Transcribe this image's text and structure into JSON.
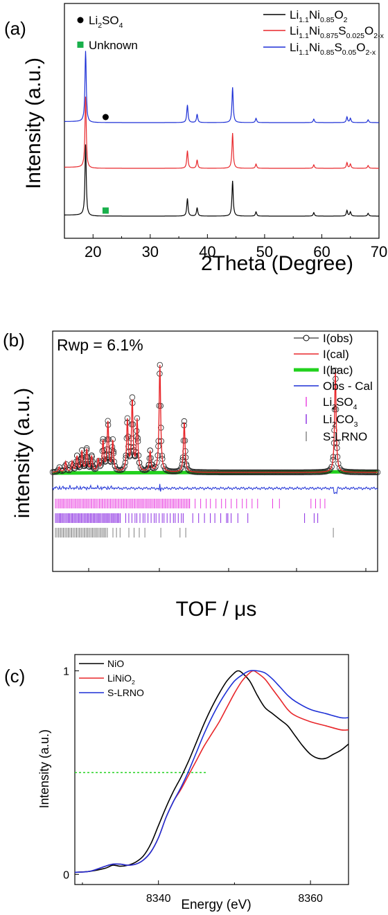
{
  "panels": {
    "a": {
      "letter": "(a)"
    },
    "b": {
      "letter": "(b)",
      "annotation": "Rwp = 6.1%"
    },
    "c": {
      "letter": "(c)"
    }
  },
  "chart_data": [
    {
      "type": "line",
      "panel": "(a)",
      "xlabel": "2Theta (Degree)",
      "ylabel": "Intensity (a.u.)",
      "xlim": [
        15,
        70
      ],
      "xticks": [
        20,
        30,
        40,
        50,
        60,
        70
      ],
      "y_tick_labels_shown": false,
      "grid": false,
      "legend_position": "top-right",
      "colors": {
        "s0": "#000000",
        "s1": "#e8262a",
        "s2": "#1c2fd6",
        "marker_li2so4": "#000000",
        "marker_unknown": "#19b04b"
      },
      "peaks_2theta": [
        18.7,
        36.5,
        38.2,
        44.4,
        48.5,
        58.6,
        64.4,
        65.0,
        68.1
      ],
      "peak_rel_heights": [
        1.0,
        0.25,
        0.12,
        0.5,
        0.06,
        0.05,
        0.08,
        0.06,
        0.04
      ],
      "series": [
        {
          "name_main": "Li",
          "name_parts": [
            [
              "1.1",
              "sub"
            ],
            [
              "Ni",
              "n"
            ],
            [
              "0.85",
              "sub"
            ],
            [
              "O",
              "n"
            ],
            [
              "2",
              "sub"
            ]
          ],
          "color": "#000000",
          "offset": 0
        },
        {
          "name_main": "Li",
          "name_parts": [
            [
              "1.1",
              "sub"
            ],
            [
              "Ni",
              "n"
            ],
            [
              "0.875",
              "sub"
            ],
            [
              "S",
              "n"
            ],
            [
              "0.025",
              "sub"
            ],
            [
              "O",
              "n"
            ],
            [
              "2-x",
              "sub"
            ]
          ],
          "color": "#e8262a",
          "offset": 1
        },
        {
          "name_main": "Li",
          "name_parts": [
            [
              "1.1",
              "sub"
            ],
            [
              "Ni",
              "n"
            ],
            [
              "0.85",
              "sub"
            ],
            [
              "S",
              "n"
            ],
            [
              "0.05",
              "sub"
            ],
            [
              "O",
              "n"
            ],
            [
              "2-x",
              "sub"
            ]
          ],
          "color": "#1c2fd6",
          "offset": 2
        }
      ],
      "marker_legend": [
        {
          "label": "Li",
          "sub": "2",
          "rest": "SO",
          "sub2": "4",
          "marker": "circle"
        },
        {
          "label": "Unknown",
          "marker": "square"
        }
      ],
      "markers": [
        {
          "type": "Li2SO4",
          "x": 22.2,
          "on_series": 2
        },
        {
          "type": "Unknown",
          "x": 22.2,
          "on_series": 0
        }
      ]
    },
    {
      "type": "line",
      "panel": "(b)",
      "xlabel": "TOF / μs",
      "ylabel": "intensity (a.u.)",
      "ticks_labeled": false,
      "grid": false,
      "legend_position": "top-right",
      "peaks_rel_x": [
        0.02,
        0.04,
        0.06,
        0.075,
        0.09,
        0.105,
        0.12,
        0.14,
        0.155,
        0.17,
        0.185,
        0.23,
        0.245,
        0.26,
        0.3,
        0.33,
        0.405,
        0.87
      ],
      "peaks_rel_h": [
        0.05,
        0.1,
        0.1,
        0.15,
        0.2,
        0.22,
        0.15,
        0.12,
        0.3,
        0.48,
        0.3,
        0.5,
        0.7,
        0.5,
        0.2,
        1.05,
        0.5,
        1.0
      ],
      "legend": [
        {
          "label": "I(obs)",
          "style": "open-circle-line",
          "color": "#000000"
        },
        {
          "label": "I(cal)",
          "style": "line",
          "color": "#e8262a"
        },
        {
          "label": "I(bac)",
          "style": "thick-line",
          "color": "#22d11e"
        },
        {
          "label": "Obs - Cal",
          "style": "line",
          "color": "#1c2fd6"
        },
        {
          "label": "Li",
          "sub": "2",
          "rest": "SO",
          "sub2": "4",
          "style": "tick",
          "color": "#e83adf"
        },
        {
          "label": "Li",
          "sub": "2",
          "rest": "CO",
          "sub2": "3",
          "style": "tick",
          "color": "#8a2be2"
        },
        {
          "label": "S-LRNO",
          "style": "tick",
          "color": "#808080"
        }
      ]
    },
    {
      "type": "line",
      "panel": "(c)",
      "xlabel": "Energy (eV)",
      "ylabel": "Intensity (a.u.)",
      "xlim": [
        8329,
        8365
      ],
      "ylim": [
        -0.05,
        1.08
      ],
      "xticks": [
        8340,
        8360
      ],
      "yticks": [
        0,
        1
      ],
      "grid": false,
      "legend_position": "top-left",
      "reference_line": {
        "y": 0.5,
        "x_from": 8329,
        "x_to": 8346.5,
        "color": "#22d11e",
        "style": "dotted"
      },
      "series": [
        {
          "name": "NiO",
          "color": "#000000",
          "x": [
            8329,
            8331,
            8333,
            8334,
            8335,
            8336,
            8337,
            8338,
            8339,
            8340,
            8341,
            8342,
            8343,
            8344,
            8345,
            8346,
            8347,
            8348,
            8349,
            8350,
            8350.5,
            8351,
            8352,
            8353,
            8354,
            8355,
            8356,
            8357,
            8358,
            8359,
            8360,
            8361,
            8362,
            8363,
            8364,
            8365
          ],
          "y": [
            0.01,
            0.015,
            0.03,
            0.045,
            0.04,
            0.045,
            0.06,
            0.09,
            0.15,
            0.24,
            0.33,
            0.41,
            0.48,
            0.56,
            0.65,
            0.74,
            0.82,
            0.89,
            0.95,
            0.99,
            1.0,
            0.99,
            0.95,
            0.88,
            0.82,
            0.79,
            0.76,
            0.73,
            0.68,
            0.63,
            0.59,
            0.57,
            0.57,
            0.59,
            0.61,
            0.64
          ]
        },
        {
          "name": "LiNiO",
          "sub": "2",
          "color": "#e8262a",
          "x": [
            8329,
            8331,
            8333,
            8334,
            8335,
            8336,
            8337,
            8338,
            8339,
            8340,
            8341,
            8342,
            8343,
            8344,
            8345,
            8346,
            8347,
            8348,
            8349,
            8350,
            8351,
            8352,
            8352.5,
            8353,
            8354,
            8355,
            8356,
            8357,
            8358,
            8360,
            8362,
            8364,
            8365
          ],
          "y": [
            0.01,
            0.015,
            0.04,
            0.05,
            0.05,
            0.045,
            0.05,
            0.07,
            0.11,
            0.18,
            0.28,
            0.36,
            0.42,
            0.49,
            0.56,
            0.63,
            0.69,
            0.75,
            0.82,
            0.89,
            0.95,
            0.99,
            1.0,
            0.99,
            0.96,
            0.91,
            0.86,
            0.81,
            0.78,
            0.75,
            0.73,
            0.71,
            0.71
          ]
        },
        {
          "name": "S-LRNO",
          "color": "#1c2fd6",
          "x": [
            8329,
            8331,
            8333,
            8334,
            8335,
            8336,
            8337,
            8338,
            8339,
            8340,
            8341,
            8342,
            8343,
            8344,
            8345,
            8346,
            8347,
            8348,
            8349,
            8350,
            8351,
            8352,
            8353,
            8354,
            8355,
            8356,
            8357,
            8358,
            8360,
            8362,
            8364,
            8365
          ],
          "y": [
            0.01,
            0.015,
            0.04,
            0.05,
            0.05,
            0.045,
            0.05,
            0.07,
            0.11,
            0.18,
            0.28,
            0.36,
            0.43,
            0.51,
            0.6,
            0.69,
            0.77,
            0.84,
            0.9,
            0.95,
            0.98,
            1.0,
            1.0,
            0.99,
            0.96,
            0.92,
            0.88,
            0.85,
            0.81,
            0.79,
            0.77,
            0.77
          ]
        }
      ]
    }
  ]
}
